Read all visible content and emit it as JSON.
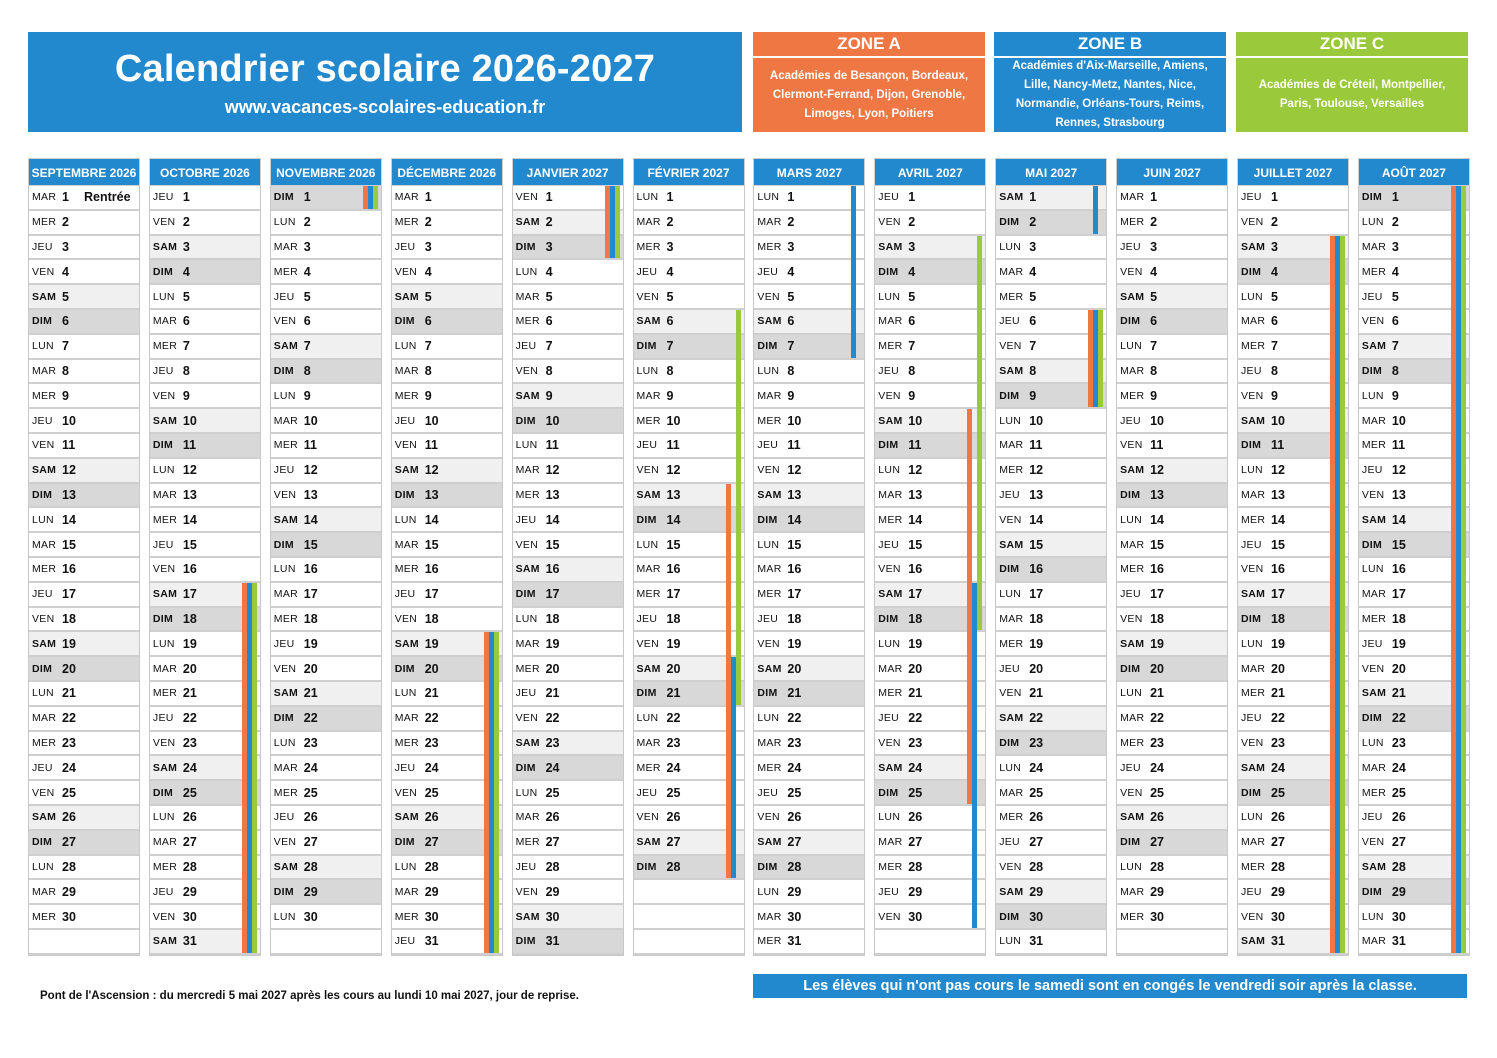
{
  "header": {
    "title": "Calendrier scolaire 2026-2027",
    "website": "www.vacances-scolaires-education.fr"
  },
  "colors": {
    "primary_blue": "#2289ce",
    "zone_a": "#ee7744",
    "zone_b": "#2289ce",
    "zone_c": "#9bc93c",
    "saturday_bg": "#f0f0f0",
    "sunday_bg": "#d8d8d8"
  },
  "zones": [
    {
      "id": "A",
      "label": "ZONE A",
      "color": "#ee7744",
      "academies": "Académies de Besançon, Bordeaux, Clermont-Ferrand, Dijon, Grenoble, Limoges, Lyon, Poitiers"
    },
    {
      "id": "B",
      "label": "ZONE B",
      "color": "#2289ce",
      "academies": "Académies d'Aix-Marseille, Amiens, Lille, Nancy-Metz, Nantes, Nice, Normandie, Orléans-Tours, Reims, Rennes, Strasbourg"
    },
    {
      "id": "C",
      "label": "ZONE C",
      "color": "#9bc93c",
      "academies": "Académies de Créteil, Montpellier, Paris, Toulouse, Versailles"
    }
  ],
  "weekday_labels": [
    "LUN",
    "MAR",
    "MER",
    "JEU",
    "VEN",
    "SAM",
    "DIM"
  ],
  "months": [
    {
      "label": "SEPTEMBRE 2026",
      "days": 30,
      "first_weekday": 1,
      "notes": {
        "1": "Rentrée"
      },
      "holidays": []
    },
    {
      "label": "OCTOBRE 2026",
      "days": 31,
      "first_weekday": 3,
      "notes": {},
      "holidays": [
        {
          "zones": [
            "A",
            "B",
            "C"
          ],
          "from": 17,
          "to": 31
        }
      ]
    },
    {
      "label": "NOVEMBRE 2026",
      "days": 30,
      "first_weekday": 6,
      "notes": {},
      "holidays": [
        {
          "zones": [
            "A",
            "B",
            "C"
          ],
          "from": 1,
          "to": 1
        }
      ]
    },
    {
      "label": "DÉCEMBRE 2026",
      "days": 31,
      "first_weekday": 1,
      "notes": {},
      "holidays": [
        {
          "zones": [
            "A",
            "B",
            "C"
          ],
          "from": 19,
          "to": 31
        }
      ]
    },
    {
      "label": "JANVIER 2027",
      "days": 31,
      "first_weekday": 4,
      "notes": {},
      "holidays": [
        {
          "zones": [
            "A",
            "B",
            "C"
          ],
          "from": 1,
          "to": 3
        }
      ]
    },
    {
      "label": "FÉVRIER 2027",
      "days": 28,
      "first_weekday": 0,
      "notes": {},
      "holidays": [
        {
          "zones": [
            "A"
          ],
          "from": 13,
          "to": 28
        },
        {
          "zones": [
            "B"
          ],
          "from": 20,
          "to": 28
        },
        {
          "zones": [
            "C"
          ],
          "from": 6,
          "to": 21
        }
      ]
    },
    {
      "label": "MARS 2027",
      "days": 31,
      "first_weekday": 0,
      "notes": {},
      "holidays": [
        {
          "zones": [
            "B"
          ],
          "from": 1,
          "to": 7
        }
      ]
    },
    {
      "label": "AVRIL 2027",
      "days": 30,
      "first_weekday": 3,
      "notes": {},
      "holidays": [
        {
          "zones": [
            "A"
          ],
          "from": 10,
          "to": 25
        },
        {
          "zones": [
            "B"
          ],
          "from": 17,
          "to": 30
        },
        {
          "zones": [
            "C"
          ],
          "from": 3,
          "to": 18
        }
      ]
    },
    {
      "label": "MAI 2027",
      "days": 31,
      "first_weekday": 5,
      "notes": {},
      "holidays": [
        {
          "zones": [
            "B"
          ],
          "from": 1,
          "to": 2
        },
        {
          "zones": [
            "A",
            "B",
            "C"
          ],
          "from": 6,
          "to": 9
        }
      ]
    },
    {
      "label": "JUIN 2027",
      "days": 30,
      "first_weekday": 1,
      "notes": {},
      "holidays": []
    },
    {
      "label": "JUILLET 2027",
      "days": 31,
      "first_weekday": 3,
      "notes": {},
      "holidays": [
        {
          "zones": [
            "A",
            "B",
            "C"
          ],
          "from": 3,
          "to": 31
        }
      ]
    },
    {
      "label": "AOÛT 2027",
      "days": 31,
      "first_weekday": 6,
      "notes": {},
      "holidays": [
        {
          "zones": [
            "A",
            "B",
            "C"
          ],
          "from": 1,
          "to": 31
        }
      ]
    }
  ],
  "footer": {
    "ascension_note": "Pont de l'Ascension : du mercredi 5 mai 2027 après les cours au lundi 10 mai 2027, jour de reprise.",
    "saturday_note": "Les élèves qui n'ont pas cours le samedi sont en congés le vendredi soir après la classe."
  }
}
